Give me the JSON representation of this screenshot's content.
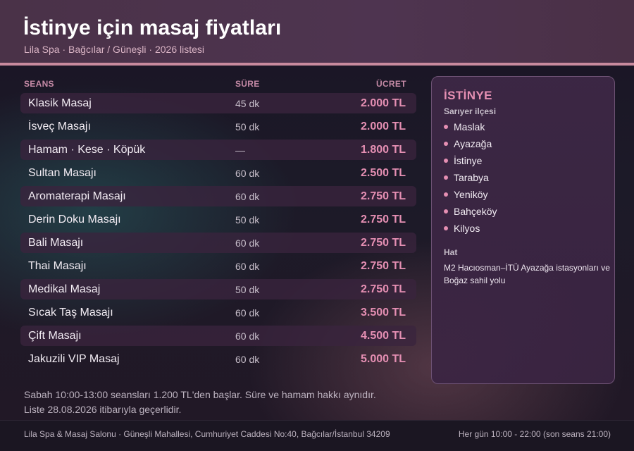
{
  "header": {
    "title": "İstinye için masaj fiyatları",
    "subtitle": "Lila Spa · Bağcılar / Güneşli · 2026 listesi"
  },
  "table": {
    "columns": {
      "session": "SEANS",
      "duration": "SÜRE",
      "price": "ÜCRET"
    },
    "rows": [
      {
        "name": "Klasik Masaj",
        "duration": "45 dk",
        "price": "2.000 TL"
      },
      {
        "name": "İsveç Masajı",
        "duration": "50 dk",
        "price": "2.000 TL"
      },
      {
        "name": "Hamam · Kese · Köpük",
        "duration": "—",
        "price": "1.800 TL"
      },
      {
        "name": "Sultan Masajı",
        "duration": "60 dk",
        "price": "2.500 TL"
      },
      {
        "name": "Aromaterapi Masajı",
        "duration": "60 dk",
        "price": "2.750 TL"
      },
      {
        "name": "Derin Doku Masajı",
        "duration": "50 dk",
        "price": "2.750 TL"
      },
      {
        "name": "Bali Masajı",
        "duration": "60 dk",
        "price": "2.750 TL"
      },
      {
        "name": "Thai Masajı",
        "duration": "60 dk",
        "price": "2.750 TL"
      },
      {
        "name": "Medikal Masaj",
        "duration": "50 dk",
        "price": "2.750 TL"
      },
      {
        "name": "Sıcak Taş Masajı",
        "duration": "60 dk",
        "price": "3.500 TL"
      },
      {
        "name": "Çift Masajı",
        "duration": "60 dk",
        "price": "4.500 TL"
      },
      {
        "name": "Jakuzili VIP Masaj",
        "duration": "60 dk",
        "price": "5.000 TL"
      }
    ]
  },
  "notes": [
    "Sabah 10:00-13:00 seansları 1.200 TL'den başlar. Süre ve hamam hakkı aynıdır.",
    "Liste 28.08.2026 itibarıyla geçerlidir."
  ],
  "panel": {
    "title": "İSTİNYE",
    "district": "Sarıyer ilçesi",
    "neighborhoods": [
      "Maslak",
      "Ayazağa",
      "İstinye",
      "Tarabya",
      "Yeniköy",
      "Bahçeköy",
      "Kilyos"
    ],
    "transit_label": "Hat",
    "transit_text": "M2 Hacıosman–İTÜ Ayazağa istasyonları ve Boğaz sahil yolu"
  },
  "footer": {
    "address": "Lila Spa & Masaj Salonu · Güneşli Mahallesi, Cumhuriyet Caddesi No:40, Bağcılar/İstanbul 34209",
    "hours": "Her gün 10:00 - 22:00 (son seans 21:00)"
  },
  "colors": {
    "accent": "#e58fb3",
    "header_bg": "#4a3248",
    "header_line": "#c98a9e"
  }
}
